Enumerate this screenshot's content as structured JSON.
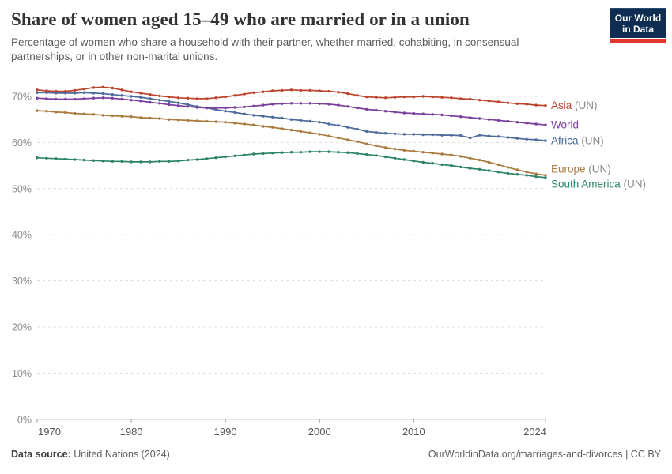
{
  "header": {
    "title": "Share of women aged 15–49 who are married or in a union",
    "subtitle": "Percentage of women who share a household with their partner, whether married, cohabiting, in consensual partnerships, or in other non-marital unions.",
    "logo": {
      "line1": "Our World",
      "line2": "in Data"
    }
  },
  "footer": {
    "source_label": "Data source:",
    "source_value": "United Nations (2024)",
    "credit": "OurWorldinData.org/marriages-and-divorces | CC BY"
  },
  "chart_data": {
    "type": "line",
    "title": "Share of women aged 15–49 who are married or in a union",
    "xlabel": "",
    "ylabel": "",
    "ylim": [
      0,
      73
    ],
    "yticks": [
      0,
      10,
      20,
      30,
      40,
      50,
      60,
      70
    ],
    "ytick_suffix": "%",
    "xticks": [
      1970,
      1980,
      1990,
      2000,
      2010,
      2024
    ],
    "grid": "horizontal-dashed",
    "legend_position": "end-of-line",
    "marker": "dot-every-year",
    "suffix_color": "#8a8a8a",
    "x": [
      1970,
      1971,
      1972,
      1973,
      1974,
      1975,
      1976,
      1977,
      1978,
      1979,
      1980,
      1981,
      1982,
      1983,
      1984,
      1985,
      1986,
      1987,
      1988,
      1989,
      1990,
      1991,
      1992,
      1993,
      1994,
      1995,
      1996,
      1997,
      1998,
      1999,
      2000,
      2001,
      2002,
      2003,
      2004,
      2005,
      2006,
      2007,
      2008,
      2009,
      2010,
      2011,
      2012,
      2013,
      2014,
      2015,
      2016,
      2017,
      2018,
      2019,
      2020,
      2021,
      2022,
      2023,
      2024
    ],
    "series": [
      {
        "name": "Asia",
        "suffix": " (UN)",
        "color": "#bc442c",
        "values": [
          71.4,
          71.2,
          71.1,
          71.1,
          71.3,
          71.6,
          71.9,
          72.0,
          71.8,
          71.4,
          71.0,
          70.7,
          70.4,
          70.1,
          69.9,
          69.7,
          69.6,
          69.5,
          69.5,
          69.7,
          69.9,
          70.2,
          70.5,
          70.8,
          71.0,
          71.2,
          71.3,
          71.4,
          71.3,
          71.3,
          71.2,
          71.1,
          70.9,
          70.6,
          70.2,
          69.9,
          69.8,
          69.7,
          69.8,
          69.9,
          69.9,
          70.0,
          69.9,
          69.8,
          69.7,
          69.5,
          69.4,
          69.2,
          69.0,
          68.8,
          68.6,
          68.4,
          68.3,
          68.1,
          68.0
        ]
      },
      {
        "name": "World",
        "suffix": "",
        "color": "#7a3e9c",
        "values": [
          69.6,
          69.5,
          69.4,
          69.4,
          69.4,
          69.5,
          69.6,
          69.7,
          69.6,
          69.4,
          69.2,
          69.0,
          68.7,
          68.5,
          68.2,
          68.0,
          67.8,
          67.6,
          67.5,
          67.5,
          67.5,
          67.6,
          67.7,
          67.9,
          68.1,
          68.3,
          68.4,
          68.5,
          68.5,
          68.5,
          68.4,
          68.3,
          68.1,
          67.8,
          67.5,
          67.2,
          67.0,
          66.8,
          66.6,
          66.4,
          66.3,
          66.2,
          66.1,
          66.0,
          65.8,
          65.6,
          65.4,
          65.2,
          65.0,
          64.8,
          64.6,
          64.4,
          64.2,
          64.0,
          63.8
        ]
      },
      {
        "name": "Africa",
        "suffix": " (UN)",
        "color": "#4c6a9c",
        "values": [
          70.8,
          70.8,
          70.7,
          70.7,
          70.7,
          70.8,
          70.7,
          70.6,
          70.4,
          70.2,
          70.0,
          69.8,
          69.5,
          69.2,
          68.9,
          68.6,
          68.2,
          67.8,
          67.5,
          67.1,
          66.8,
          66.5,
          66.2,
          65.9,
          65.7,
          65.5,
          65.3,
          65.0,
          64.8,
          64.6,
          64.4,
          64.0,
          63.7,
          63.3,
          62.9,
          62.4,
          62.2,
          62.0,
          61.9,
          61.8,
          61.8,
          61.7,
          61.7,
          61.6,
          61.6,
          61.5,
          61.0,
          61.6,
          61.4,
          61.3,
          61.1,
          60.9,
          60.7,
          60.6,
          60.4
        ]
      },
      {
        "name": "Europe",
        "suffix": " (UN)",
        "color": "#a87a3c",
        "values": [
          66.9,
          66.8,
          66.6,
          66.5,
          66.3,
          66.2,
          66.1,
          65.9,
          65.8,
          65.7,
          65.6,
          65.4,
          65.3,
          65.2,
          65.0,
          64.9,
          64.8,
          64.7,
          64.6,
          64.5,
          64.4,
          64.2,
          64.0,
          63.8,
          63.5,
          63.3,
          63.0,
          62.7,
          62.4,
          62.1,
          61.8,
          61.4,
          61.0,
          60.6,
          60.2,
          59.7,
          59.3,
          58.9,
          58.6,
          58.3,
          58.1,
          57.9,
          57.7,
          57.5,
          57.3,
          57.0,
          56.6,
          56.2,
          55.7,
          55.2,
          54.6,
          54.1,
          53.6,
          53.2,
          52.9
        ]
      },
      {
        "name": "South America",
        "suffix": " (UN)",
        "color": "#2c8465",
        "values": [
          56.7,
          56.6,
          56.5,
          56.4,
          56.3,
          56.2,
          56.1,
          56.0,
          55.9,
          55.9,
          55.8,
          55.8,
          55.8,
          55.9,
          55.9,
          56.0,
          56.2,
          56.3,
          56.5,
          56.7,
          56.9,
          57.1,
          57.3,
          57.5,
          57.6,
          57.7,
          57.8,
          57.9,
          57.9,
          58.0,
          58.0,
          58.0,
          57.9,
          57.8,
          57.6,
          57.4,
          57.2,
          56.9,
          56.6,
          56.3,
          56.0,
          55.7,
          55.5,
          55.2,
          55.0,
          54.7,
          54.4,
          54.2,
          53.9,
          53.6,
          53.3,
          53.1,
          52.9,
          52.6,
          52.4
        ]
      }
    ]
  }
}
